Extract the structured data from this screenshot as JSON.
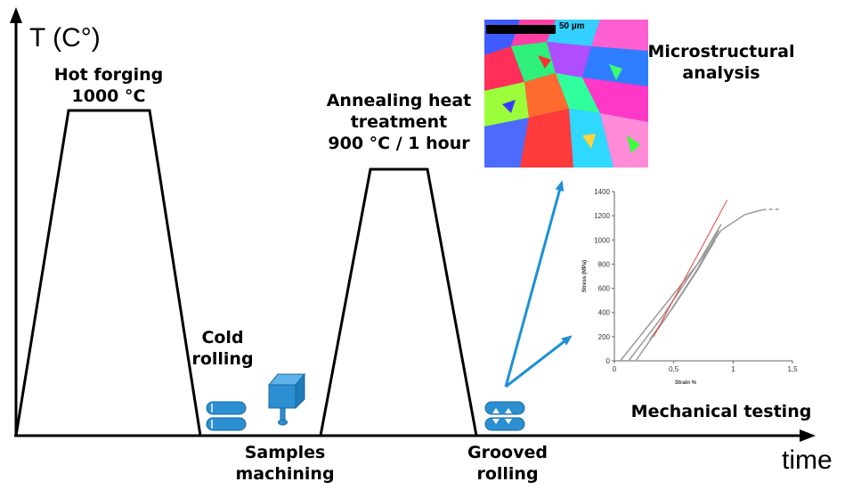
{
  "axes": {
    "y_label": "T (C°)",
    "x_label": "time"
  },
  "stages": {
    "hot_forging": {
      "line1": "Hot forging",
      "line2": "1000 °C"
    },
    "cold_rolling": {
      "line1": "Cold",
      "line2": "rolling"
    },
    "samples_machining": {
      "line1": "Samples",
      "line2": "machining"
    },
    "annealing": {
      "line1": "Annealing heat",
      "line2": "treatment",
      "line3": "900 °C / 1 hour"
    },
    "grooved_rolling": {
      "line1": "Grooved",
      "line2": "rolling"
    }
  },
  "analysis": {
    "microstructure": {
      "line1": "Microstructural",
      "line2": "analysis",
      "scale_label": "50 µm"
    },
    "mechanical": {
      "label": "Mechanical testing"
    }
  },
  "colors": {
    "line": "#000000",
    "icon_blue": "#2b8fd1",
    "arrow_blue": "#1e90d6",
    "curve_gray": "#9a9a9a",
    "curve_red": "#e8463a"
  },
  "chart_data": {
    "type": "line",
    "xlabel": "Strain %",
    "ylabel": "Stress (MPa)",
    "x_ticks": [
      "0",
      "0,5",
      "1",
      "1,5"
    ],
    "y_ticks": [
      "0",
      "200",
      "400",
      "600",
      "800",
      "1000",
      "1200",
      "1400"
    ],
    "xlim": [
      0,
      1.5
    ],
    "ylim": [
      0,
      1400
    ],
    "series": [
      {
        "color": "#9a9a9a",
        "x": [
          0.05,
          0.4,
          0.7,
          0.9,
          1.1,
          1.25
        ],
        "y": [
          0,
          430,
          800,
          1080,
          1210,
          1250
        ]
      },
      {
        "color": "#9a9a9a",
        "x": [
          0.12,
          0.4,
          0.7,
          0.9
        ],
        "y": [
          0,
          360,
          800,
          1130
        ]
      },
      {
        "color": "#9a9a9a",
        "x": [
          0.18,
          0.45,
          0.7,
          0.88
        ],
        "y": [
          0,
          380,
          760,
          1080
        ]
      },
      {
        "color": "#9a9a9a",
        "x": [
          0.3,
          0.5,
          0.7,
          0.85
        ],
        "y": [
          180,
          450,
          750,
          1000
        ]
      },
      {
        "color": "#9a9a9a",
        "x": [
          1.25,
          1.4
        ],
        "y": [
          1250,
          1255
        ],
        "dashed": true
      },
      {
        "color": "#e8463a",
        "x": [
          0.33,
          0.95
        ],
        "y": [
          200,
          1330
        ]
      }
    ]
  }
}
